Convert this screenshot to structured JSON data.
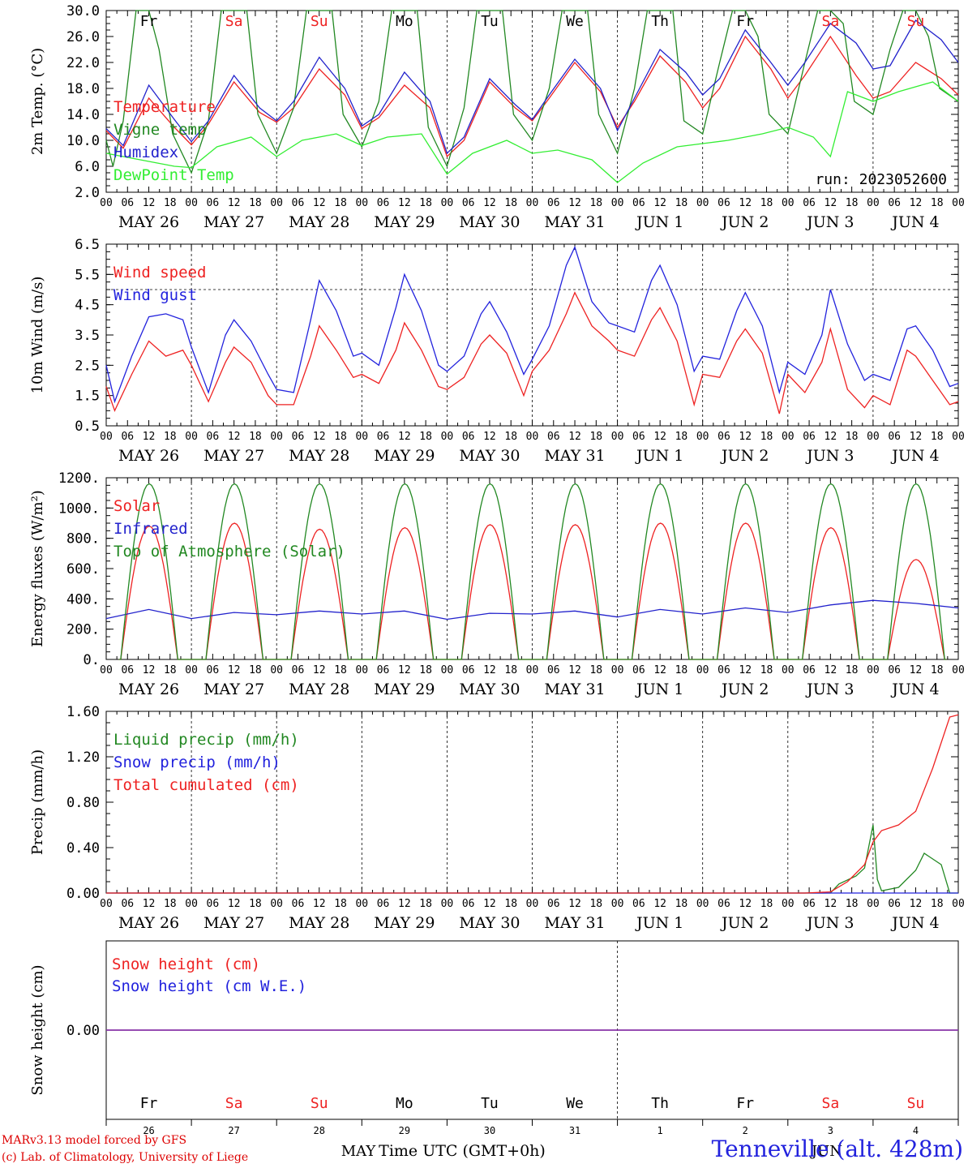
{
  "footer": {
    "credit_line1": "MARv3.13 model forced by GFS",
    "credit_line2": "(c) Lab. of Climatology, University of Liege",
    "station": "Tenneville (alt. 428m)",
    "xlabel": "Time UTC (GMT+0h)",
    "month_label_1": "MAY",
    "month_label_2": "JUN"
  },
  "time_axis": {
    "hour_ticks": [
      "00",
      "06",
      "12",
      "18"
    ],
    "date_labels": [
      "MAY 26",
      "MAY 27",
      "MAY 28",
      "MAY 29",
      "MAY 30",
      "MAY 31",
      "JUN 1",
      "JUN 2",
      "JUN 3",
      "JUN 4"
    ],
    "weekdays": [
      "Fr",
      "Sa",
      "Su",
      "Mo",
      "Tu",
      "We",
      "Th",
      "Fr",
      "Sa",
      "Su"
    ],
    "weekend_color": "#ee2222",
    "weekday_color": "#000000",
    "day_numbers": [
      "26",
      "27",
      "28",
      "29",
      "30",
      "31",
      "1",
      "2",
      "3",
      "4"
    ]
  },
  "chart_data": [
    {
      "type": "line",
      "ylabel": "2m Temp. (°C)",
      "ylim": [
        2.0,
        30.0
      ],
      "yticks": [
        "2.0",
        "6.0",
        "10.0",
        "14.0",
        "18.0",
        "22.0",
        "26.0",
        "30.0"
      ],
      "annotation": "run: 2023052600",
      "show_weekdays": true,
      "x_unit": "days since MAY 26 00 UTC",
      "series": [
        {
          "name": "Temperature",
          "color": "#ee2222",
          "x": [
            0,
            0.2,
            0.5,
            0.8,
            1,
            1.2,
            1.5,
            1.8,
            2,
            2.2,
            2.5,
            2.8,
            3,
            3.2,
            3.5,
            3.8,
            4,
            4.2,
            4.5,
            4.8,
            5,
            5.2,
            5.5,
            5.8,
            6,
            6.2,
            6.5,
            6.8,
            7,
            7.2,
            7.5,
            7.8,
            8,
            8.2,
            8.5,
            8.8,
            9,
            9.2,
            9.5,
            9.8,
            10
          ],
          "y": [
            11.5,
            8.8,
            16.5,
            12,
            9.3,
            12.5,
            19,
            14.3,
            12.8,
            15,
            21,
            17,
            11.8,
            13.5,
            18.5,
            15,
            7.5,
            10,
            19,
            15,
            13,
            16.5,
            22,
            17.5,
            12,
            16,
            23,
            19,
            15,
            18,
            26,
            21,
            16.5,
            20,
            26,
            20,
            16.5,
            17.5,
            22,
            19.5,
            17
          ]
        },
        {
          "name": "Vigne temp",
          "color": "#228822",
          "x": [
            0,
            0.08,
            0.2,
            0.35,
            0.5,
            0.62,
            0.78,
            1,
            1.2,
            1.35,
            1.5,
            1.65,
            1.78,
            2,
            2.2,
            2.35,
            2.5,
            2.65,
            2.78,
            3,
            3.2,
            3.35,
            3.5,
            3.65,
            3.78,
            4,
            4.2,
            4.35,
            4.5,
            4.65,
            4.78,
            5,
            5.2,
            5.35,
            5.5,
            5.65,
            5.78,
            6,
            6.2,
            6.35,
            6.5,
            6.65,
            6.78,
            7,
            7.2,
            7.35,
            7.5,
            7.65,
            7.78,
            8,
            8.2,
            8.35,
            8.5,
            8.65,
            8.78,
            9,
            9.2,
            9.35,
            9.5,
            9.65,
            9.78,
            10
          ],
          "y": [
            10,
            6,
            13,
            30,
            30,
            24,
            11,
            5,
            13,
            30,
            30,
            30,
            14,
            8,
            15,
            30,
            30,
            30,
            14,
            9,
            16,
            30,
            30,
            30,
            12,
            6,
            15,
            30,
            30,
            30,
            14,
            10,
            18,
            30,
            30,
            30,
            14,
            8,
            18,
            30,
            30,
            30,
            13,
            11,
            22,
            30,
            30,
            26,
            14,
            11,
            22,
            30,
            30,
            28,
            16,
            14,
            24,
            30,
            30,
            26,
            18,
            16
          ]
        },
        {
          "name": "Humidex",
          "color": "#2222cc",
          "x": [
            0,
            0.2,
            0.5,
            0.8,
            1,
            1.2,
            1.5,
            1.8,
            2,
            2.2,
            2.5,
            2.8,
            3,
            3.2,
            3.5,
            3.8,
            4,
            4.2,
            4.5,
            4.8,
            5,
            5.2,
            5.5,
            5.8,
            6,
            6.2,
            6.5,
            6.8,
            7,
            7.2,
            7.5,
            7.8,
            8,
            8.2,
            8.5,
            8.8,
            9,
            9.2,
            9.5,
            9.8,
            10
          ],
          "y": [
            11.8,
            9.2,
            18.5,
            13.2,
            9.8,
            13,
            20,
            15,
            13,
            16,
            22.8,
            18,
            12.2,
            14,
            20.5,
            16,
            8,
            10.5,
            19.5,
            15.5,
            13.2,
            17,
            22.5,
            18,
            11.5,
            16.5,
            24,
            20.5,
            17,
            19.5,
            27,
            22,
            18.5,
            22,
            28,
            25,
            21,
            21.5,
            28.5,
            25.5,
            22
          ]
        },
        {
          "name": "DewPoint Temp",
          "color": "#33ee33",
          "x": [
            0,
            0.4,
            0.8,
            1,
            1.3,
            1.7,
            2,
            2.3,
            2.7,
            3,
            3.3,
            3.7,
            4,
            4.3,
            4.7,
            5,
            5.3,
            5.7,
            6,
            6.3,
            6.7,
            7,
            7.3,
            7.7,
            8,
            8.3,
            8.5,
            8.7,
            9,
            9.3,
            9.7,
            10
          ],
          "y": [
            8,
            7,
            6,
            5.8,
            9,
            10.5,
            7.5,
            10,
            11,
            9.2,
            10.5,
            11,
            4.8,
            8,
            10,
            8,
            8.5,
            7,
            3.5,
            6.5,
            9,
            9.5,
            10,
            11,
            12,
            10.5,
            7.5,
            17.5,
            16,
            17.5,
            19,
            16
          ]
        }
      ]
    },
    {
      "type": "line",
      "ylabel": "10m Wind (m/s)",
      "ylim": [
        0.5,
        6.5
      ],
      "yticks": [
        "0.5",
        "1.5",
        "2.5",
        "3.5",
        "4.5",
        "5.5",
        "6.5"
      ],
      "reference_line": 5.0,
      "x_unit": "days since MAY 26 00 UTC",
      "series": [
        {
          "name": "Wind speed",
          "color": "#ee2222",
          "x": [
            0,
            0.1,
            0.3,
            0.5,
            0.7,
            0.9,
            1,
            1.2,
            1.4,
            1.5,
            1.7,
            1.9,
            2,
            2.2,
            2.4,
            2.5,
            2.7,
            2.9,
            3,
            3.2,
            3.4,
            3.5,
            3.7,
            3.9,
            4,
            4.2,
            4.4,
            4.5,
            4.7,
            4.9,
            5,
            5.2,
            5.4,
            5.5,
            5.7,
            5.9,
            6,
            6.2,
            6.4,
            6.5,
            6.7,
            6.9,
            7,
            7.2,
            7.4,
            7.5,
            7.7,
            7.9,
            8,
            8.2,
            8.4,
            8.5,
            8.7,
            8.9,
            9,
            9.2,
            9.4,
            9.5,
            9.7,
            9.9,
            10
          ],
          "y": [
            1.8,
            1,
            2.2,
            3.3,
            2.8,
            3,
            2.5,
            1.3,
            2.6,
            3.1,
            2.6,
            1.5,
            1.2,
            1.2,
            2.8,
            3.8,
            3,
            2.1,
            2.2,
            1.9,
            3,
            3.9,
            3,
            1.8,
            1.7,
            2.1,
            3.2,
            3.5,
            2.9,
            1.5,
            2.3,
            3,
            4.2,
            4.9,
            3.8,
            3.3,
            3,
            2.8,
            4,
            4.4,
            3.3,
            1.2,
            2.2,
            2.1,
            3.3,
            3.7,
            2.9,
            0.9,
            2.2,
            1.6,
            2.6,
            3.7,
            1.7,
            1.1,
            1.5,
            1.2,
            3,
            2.8,
            2,
            1.2,
            1.3
          ]
        },
        {
          "name": "Wind gust",
          "color": "#2222dd",
          "x": [
            0,
            0.1,
            0.3,
            0.5,
            0.7,
            0.9,
            1,
            1.2,
            1.4,
            1.5,
            1.7,
            1.9,
            2,
            2.2,
            2.4,
            2.5,
            2.7,
            2.9,
            3,
            3.2,
            3.4,
            3.5,
            3.7,
            3.9,
            4,
            4.2,
            4.4,
            4.5,
            4.7,
            4.9,
            5,
            5.2,
            5.4,
            5.5,
            5.7,
            5.9,
            6,
            6.2,
            6.4,
            6.5,
            6.7,
            6.9,
            7,
            7.2,
            7.4,
            7.5,
            7.7,
            7.9,
            8,
            8.2,
            8.4,
            8.5,
            8.7,
            8.9,
            9,
            9.2,
            9.4,
            9.5,
            9.7,
            9.9,
            10
          ],
          "y": [
            2.5,
            1.3,
            2.8,
            4.1,
            4.2,
            4,
            3.1,
            1.6,
            3.5,
            4,
            3.3,
            2.2,
            1.7,
            1.6,
            4,
            5.3,
            4.3,
            2.8,
            2.9,
            2.5,
            4.4,
            5.5,
            4.3,
            2.5,
            2.3,
            2.8,
            4.2,
            4.6,
            3.6,
            2.2,
            2.7,
            3.8,
            5.8,
            6.4,
            4.6,
            3.9,
            3.8,
            3.6,
            5.3,
            5.8,
            4.5,
            2.3,
            2.8,
            2.7,
            4.3,
            4.9,
            3.8,
            1.6,
            2.6,
            2.2,
            3.5,
            5,
            3.2,
            2,
            2.2,
            2,
            3.7,
            3.8,
            3,
            1.8,
            1.9
          ]
        }
      ]
    },
    {
      "type": "line",
      "ylabel": "Energy fluxes (W/m²)",
      "ylim": [
        0,
        1200
      ],
      "yticks": [
        "0.",
        "200.",
        "400.",
        "600.",
        "800.",
        "1000.",
        "1200."
      ],
      "x_unit": "days since MAY 26 00 UTC",
      "diurnal_window": [
        0.17,
        0.84
      ],
      "series": [
        {
          "name": "Solar",
          "color": "#ee2222",
          "daily_peak": [
            880,
            900,
            860,
            870,
            890,
            890,
            900,
            900,
            870,
            660
          ]
        },
        {
          "name": "Infrared",
          "color": "#2222cc",
          "x": [
            0,
            0.5,
            1,
            1.5,
            2,
            2.5,
            3,
            3.5,
            4,
            4.5,
            5,
            5.5,
            6,
            6.5,
            7,
            7.5,
            8,
            8.5,
            9,
            9.5,
            10
          ],
          "y": [
            270,
            330,
            270,
            310,
            295,
            320,
            300,
            320,
            265,
            305,
            300,
            320,
            280,
            330,
            300,
            340,
            310,
            360,
            390,
            370,
            340
          ]
        },
        {
          "name": "Top of Atmosphere (Solar)",
          "color": "#228822",
          "daily_peak": [
            1160,
            1160,
            1160,
            1160,
            1160,
            1160,
            1160,
            1160,
            1160,
            1160
          ]
        }
      ]
    },
    {
      "type": "line",
      "ylabel": "Precip (mm/h)",
      "ylim": [
        0.0,
        1.6
      ],
      "yticks": [
        "0.00",
        "0.40",
        "0.80",
        "1.20",
        "1.60"
      ],
      "x_unit": "days since MAY 26 00 UTC",
      "series": [
        {
          "name": "Liquid precip (mm/h)",
          "color": "#228822",
          "x": [
            0,
            8.5,
            8.6,
            8.8,
            8.9,
            9.0,
            9.05,
            9.1,
            9.3,
            9.5,
            9.6,
            9.8,
            9.9,
            10
          ],
          "y": [
            0,
            0,
            0.08,
            0.15,
            0.22,
            0.6,
            0.12,
            0.02,
            0.05,
            0.2,
            0.35,
            0.25,
            0,
            0
          ]
        },
        {
          "name": "Snow precip (mm/h)",
          "color": "#2222dd",
          "x": [
            0,
            10
          ],
          "y": [
            0,
            0
          ]
        },
        {
          "name": "Total cumulated (cm)",
          "color": "#ee2222",
          "x": [
            0,
            8.2,
            8.5,
            8.7,
            8.9,
            9.0,
            9.1,
            9.3,
            9.5,
            9.7,
            9.9,
            10
          ],
          "y": [
            0,
            0,
            0.01,
            0.1,
            0.25,
            0.45,
            0.55,
            0.6,
            0.72,
            1.1,
            1.55,
            1.57
          ]
        }
      ]
    },
    {
      "type": "line",
      "ylabel": "Snow height (cm)",
      "ylim": [
        -1,
        1
      ],
      "yticks": [
        "0.00"
      ],
      "show_weekdays_bottom": true,
      "x_unit": "days since MAY 26 00 UTC",
      "series": [
        {
          "name": "Snow height (cm)",
          "color": "#ee2222",
          "x": [
            0,
            10
          ],
          "y": [
            0,
            0
          ]
        },
        {
          "name": "Snow height (cm W.E.)",
          "color": "#2222dd",
          "x": [
            0,
            10
          ],
          "y": [
            0,
            0
          ]
        }
      ]
    }
  ]
}
